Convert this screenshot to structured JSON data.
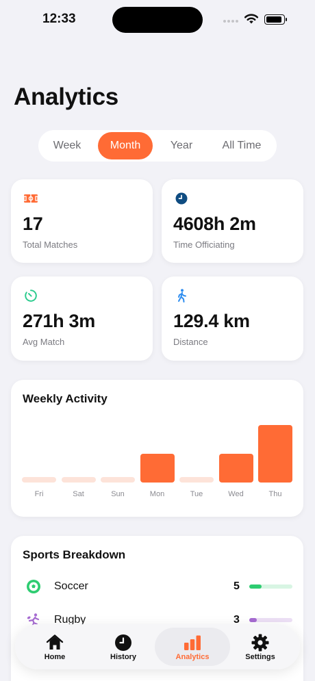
{
  "status_bar": {
    "time": "12:33"
  },
  "page": {
    "title": "Analytics"
  },
  "periods": [
    {
      "label": "Week",
      "active": false
    },
    {
      "label": "Month",
      "active": true
    },
    {
      "label": "Year",
      "active": false
    },
    {
      "label": "All Time",
      "active": false
    }
  ],
  "stats": [
    {
      "value": "17",
      "label": "Total Matches",
      "icon": "field-icon",
      "color": "#ff6b35"
    },
    {
      "value": "4608h 2m",
      "label": "Time Officiating",
      "icon": "clock-icon",
      "color": "#0f4c81"
    },
    {
      "value": "271h 3m",
      "label": "Avg Match",
      "icon": "timer-icon",
      "color": "#2ecc8f"
    },
    {
      "value": "129.4 km",
      "label": "Distance",
      "icon": "walking-icon",
      "color": "#2f8ef0"
    }
  ],
  "weekly_activity": {
    "title": "Weekly Activity",
    "bar_color": "#ff6b35",
    "empty_color": "#fde3d9",
    "days": [
      {
        "label": "Fri",
        "level": 0
      },
      {
        "label": "Sat",
        "level": 0
      },
      {
        "label": "Sun",
        "level": 0
      },
      {
        "label": "Mon",
        "level": 0.5
      },
      {
        "label": "Tue",
        "level": 0
      },
      {
        "label": "Wed",
        "level": 0.5
      },
      {
        "label": "Thu",
        "level": 1
      }
    ]
  },
  "sports_breakdown": {
    "title": "Sports Breakdown",
    "items": [
      {
        "name": "Soccer",
        "count": "5",
        "icon": "soccer-ball-icon",
        "color": "#2ecc71",
        "track": "#d8f5e3",
        "fraction": 0.29
      },
      {
        "name": "Rugby",
        "count": "3",
        "icon": "rugby-player-icon",
        "color": "#a66bd1",
        "track": "#ecdff5",
        "fraction": 0.18
      }
    ]
  },
  "tab_bar": {
    "tabs": [
      {
        "label": "Home",
        "icon": "house-icon",
        "active": false
      },
      {
        "label": "History",
        "icon": "clock-icon",
        "active": false
      },
      {
        "label": "Analytics",
        "icon": "bar-chart-icon",
        "active": true
      },
      {
        "label": "Settings",
        "icon": "gear-icon",
        "active": false
      }
    ],
    "accent": "#ff6b35"
  }
}
